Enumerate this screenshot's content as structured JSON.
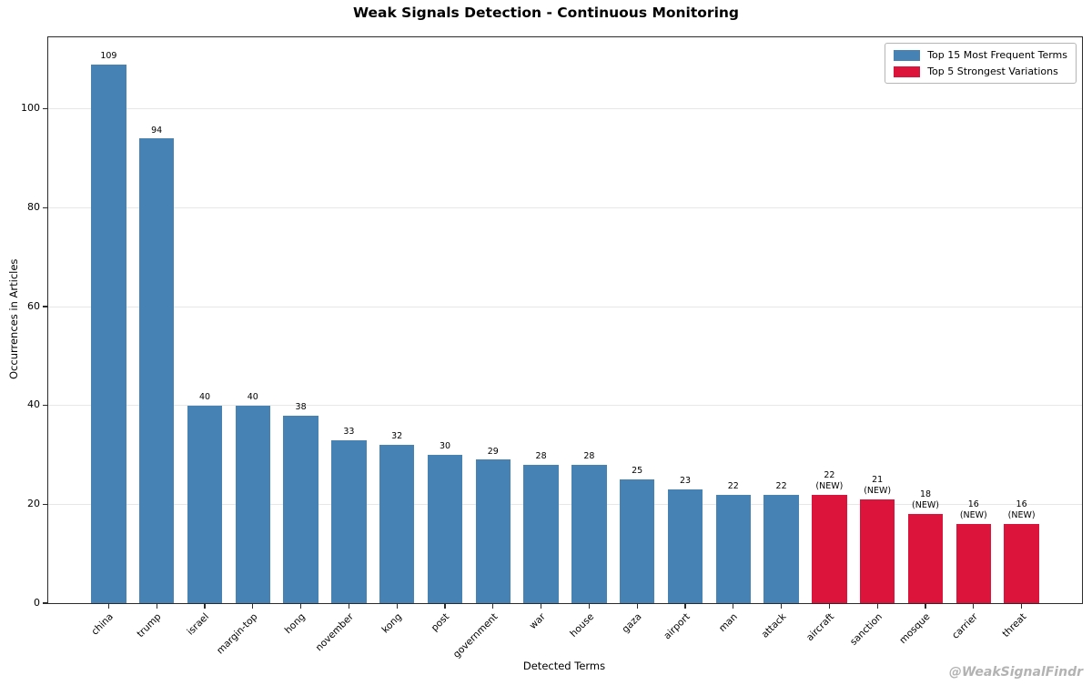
{
  "figure": {
    "watermark": "@WeakSignalFindr"
  },
  "chart_data": {
    "type": "bar",
    "title": "Weak Signals Detection - Continuous Monitoring",
    "xlabel": "Detected Terms",
    "ylabel": "Occurrences in Articles",
    "ylim": [
      0,
      114.5
    ],
    "yticks": [
      0,
      20,
      40,
      60,
      80,
      100
    ],
    "grid": true,
    "legend_position": "upper right",
    "new_marker_label": "(NEW)",
    "series": [
      {
        "name": "Top 15 Most Frequent Terms",
        "color": "#4682b4"
      },
      {
        "name": "Top 5 Strongest Variations",
        "color": "#dc143c"
      }
    ],
    "categories": [
      "china",
      "trump",
      "israel",
      "margin-top",
      "hong",
      "november",
      "kong",
      "post",
      "government",
      "war",
      "house",
      "gaza",
      "airport",
      "man",
      "attack",
      "aircraft",
      "sanction",
      "mosque",
      "carrier",
      "threat"
    ],
    "values": [
      109,
      94,
      40,
      40,
      38,
      33,
      32,
      30,
      29,
      28,
      28,
      25,
      23,
      22,
      22,
      22,
      21,
      18,
      16,
      16
    ],
    "bar_series": [
      0,
      0,
      0,
      0,
      0,
      0,
      0,
      0,
      0,
      0,
      0,
      0,
      0,
      0,
      0,
      1,
      1,
      1,
      1,
      1
    ]
  }
}
